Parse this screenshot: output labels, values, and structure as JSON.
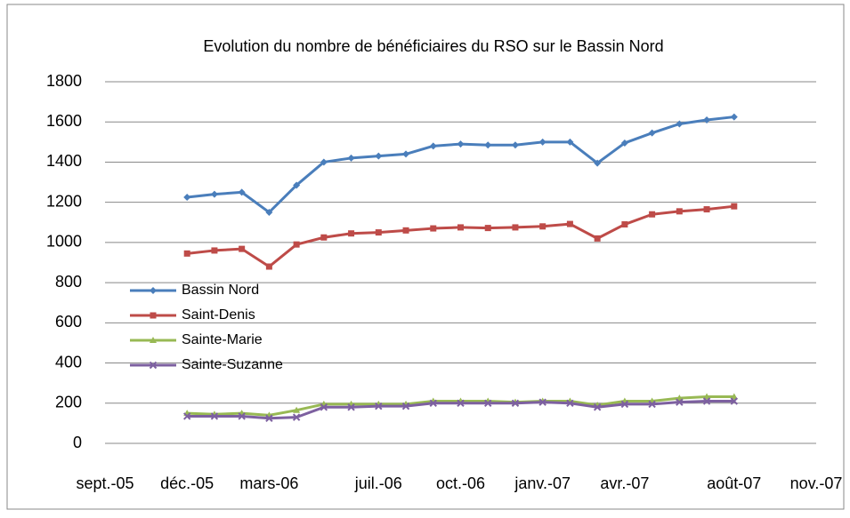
{
  "chart_data": {
    "type": "line",
    "title": "Evolution du nombre de bénéficiaires du RSO sur le Bassin Nord",
    "x": [
      "2005-12",
      "2006-01",
      "2006-02",
      "2006-03",
      "2006-04",
      "2006-05",
      "2006-06",
      "2006-07",
      "2006-08",
      "2006-09",
      "2006-10",
      "2006-11",
      "2006-12",
      "2007-01",
      "2007-02",
      "2007-03",
      "2007-04",
      "2007-05",
      "2007-06",
      "2007-07",
      "2007-08"
    ],
    "series": [
      {
        "name": "Bassin Nord",
        "color": "#4a7ebb",
        "values": [
          1225,
          1240,
          1250,
          1150,
          1285,
          1400,
          1420,
          1430,
          1440,
          1480,
          1490,
          1485,
          1485,
          1500,
          1500,
          1395,
          1495,
          1545,
          1590,
          1610,
          1625
        ]
      },
      {
        "name": "Saint-Denis",
        "color": "#be4b48",
        "values": [
          945,
          960,
          968,
          880,
          990,
          1025,
          1045,
          1050,
          1060,
          1070,
          1075,
          1072,
          1075,
          1080,
          1092,
          1020,
          1090,
          1140,
          1155,
          1165,
          1180
        ]
      },
      {
        "name": "Sainte-Marie",
        "color": "#98b954",
        "values": [
          150,
          145,
          150,
          140,
          165,
          195,
          195,
          195,
          195,
          210,
          210,
          210,
          205,
          210,
          210,
          190,
          210,
          210,
          225,
          232,
          232
        ]
      },
      {
        "name": "Sainte-Suzanne",
        "color": "#7d60a0",
        "values": [
          135,
          135,
          135,
          125,
          130,
          180,
          180,
          185,
          185,
          200,
          200,
          200,
          200,
          205,
          200,
          180,
          195,
          195,
          205,
          210,
          210
        ]
      }
    ],
    "xlim": [
      "2005-09",
      "2007-11"
    ],
    "xticks": [
      {
        "value": "2005-09",
        "label": "sept.-05"
      },
      {
        "value": "2005-12",
        "label": "déc.-05"
      },
      {
        "value": "2006-03",
        "label": "mars-06"
      },
      {
        "value": "2006-07",
        "label": "juil.-06"
      },
      {
        "value": "2006-10",
        "label": "oct.-06"
      },
      {
        "value": "2007-01",
        "label": "janv.-07"
      },
      {
        "value": "2007-04",
        "label": "avr.-07"
      },
      {
        "value": "2007-08",
        "label": "août-07"
      },
      {
        "value": "2007-11",
        "label": "nov.-07"
      }
    ],
    "ylim": [
      0,
      1800
    ],
    "yticks": [
      0,
      200,
      400,
      600,
      800,
      1000,
      1200,
      1400,
      1600,
      1800
    ],
    "grid": true,
    "legend": "left"
  }
}
